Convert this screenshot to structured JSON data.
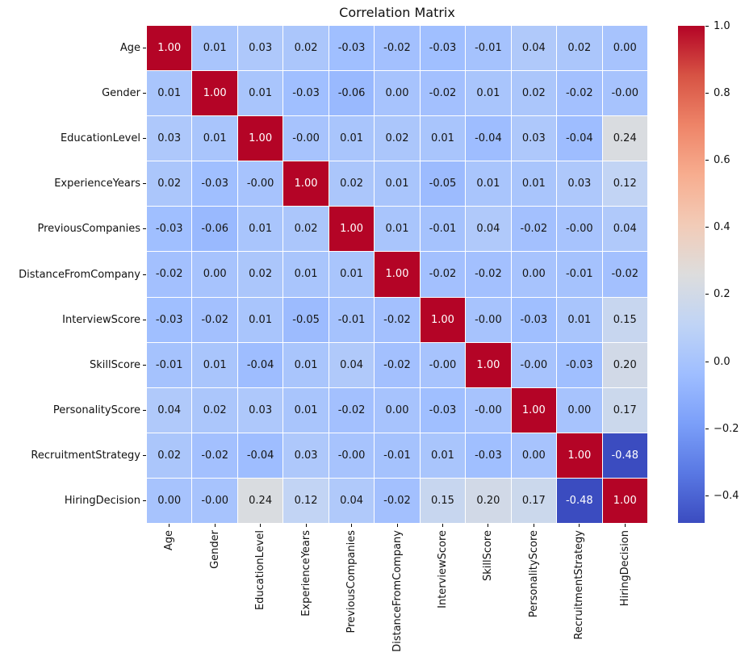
{
  "chart_data": {
    "type": "heatmap",
    "title": "Correlation Matrix",
    "labels": [
      "Age",
      "Gender",
      "EducationLevel",
      "ExperienceYears",
      "PreviousCompanies",
      "DistanceFromCompany",
      "InterviewScore",
      "SkillScore",
      "PersonalityScore",
      "RecruitmentStrategy",
      "HiringDecision"
    ],
    "matrix": [
      [
        "1.00",
        "0.01",
        "0.03",
        "0.02",
        "-0.03",
        "-0.02",
        "-0.03",
        "-0.01",
        "0.04",
        "0.02",
        "0.00"
      ],
      [
        "0.01",
        "1.00",
        "0.01",
        "-0.03",
        "-0.06",
        "0.00",
        "-0.02",
        "0.01",
        "0.02",
        "-0.02",
        "-0.00"
      ],
      [
        "0.03",
        "0.01",
        "1.00",
        "-0.00",
        "0.01",
        "0.02",
        "0.01",
        "-0.04",
        "0.03",
        "-0.04",
        "0.24"
      ],
      [
        "0.02",
        "-0.03",
        "-0.00",
        "1.00",
        "0.02",
        "0.01",
        "-0.05",
        "0.01",
        "0.01",
        "0.03",
        "0.12"
      ],
      [
        "-0.03",
        "-0.06",
        "0.01",
        "0.02",
        "1.00",
        "0.01",
        "-0.01",
        "0.04",
        "-0.02",
        "-0.00",
        "0.04"
      ],
      [
        "-0.02",
        "0.00",
        "0.02",
        "0.01",
        "0.01",
        "1.00",
        "-0.02",
        "-0.02",
        "0.00",
        "-0.01",
        "-0.02"
      ],
      [
        "-0.03",
        "-0.02",
        "0.01",
        "-0.05",
        "-0.01",
        "-0.02",
        "1.00",
        "-0.00",
        "-0.03",
        "0.01",
        "0.15"
      ],
      [
        "-0.01",
        "0.01",
        "-0.04",
        "0.01",
        "0.04",
        "-0.02",
        "-0.00",
        "1.00",
        "-0.00",
        "-0.03",
        "0.20"
      ],
      [
        "0.04",
        "0.02",
        "0.03",
        "0.01",
        "-0.02",
        "0.00",
        "-0.03",
        "-0.00",
        "1.00",
        "0.00",
        "0.17"
      ],
      [
        "0.02",
        "-0.02",
        "-0.04",
        "0.03",
        "-0.00",
        "-0.01",
        "0.01",
        "-0.03",
        "0.00",
        "1.00",
        "-0.48"
      ],
      [
        "0.00",
        "-0.00",
        "0.24",
        "0.12",
        "0.04",
        "-0.02",
        "0.15",
        "0.20",
        "0.17",
        "-0.48",
        "1.00"
      ]
    ],
    "vmin": -0.48,
    "vmax": 1.0,
    "colormap": "coolwarm",
    "colormap_stops": [
      "#3B4CC0",
      "#5978E3",
      "#7B9FF9",
      "#9FBEFF",
      "#C0D4F5",
      "#DDDDDD",
      "#F2CBB7",
      "#F7AD8F",
      "#EE8468",
      "#D75344",
      "#B40426"
    ],
    "colorbar_ticks": [
      "1.0",
      "0.8",
      "0.6",
      "0.4",
      "0.2",
      "0.0",
      "−0.2",
      "−0.4"
    ],
    "cell_line_color": "#ffffff",
    "annot_color_dark": "#151515",
    "annot_color_light": "#ffffff",
    "tick_color": "#000000",
    "legend_position": "right",
    "grid_on": false
  }
}
